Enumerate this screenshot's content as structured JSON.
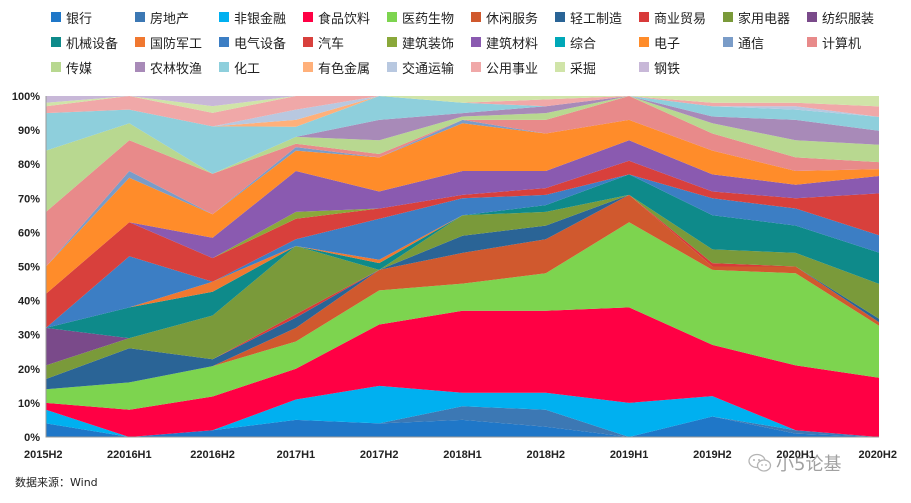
{
  "chart_data": {
    "type": "area",
    "stacked_percent": true,
    "ylim": [
      0,
      100
    ],
    "y_ticks": [
      "0%",
      "10%",
      "20%",
      "30%",
      "40%",
      "50%",
      "60%",
      "70%",
      "80%",
      "90%",
      "100%"
    ],
    "x": [
      "2015H2",
      "22016H1",
      "22016H2",
      "2017H1",
      "2017H2",
      "2018H1",
      "2018H2",
      "2019H1",
      "2019H2",
      "2020H1",
      "2020H2"
    ],
    "series": [
      {
        "name": "银行",
        "color": "#1f77c8",
        "values": [
          4,
          0,
          2,
          5,
          4,
          5,
          3,
          0,
          6,
          1,
          0
        ]
      },
      {
        "name": "房地产",
        "color": "#3c78b4",
        "values": [
          0,
          0,
          0,
          0,
          0,
          4,
          5,
          0,
          0,
          1,
          0
        ]
      },
      {
        "name": "非银金融",
        "color": "#00b0f0",
        "values": [
          4,
          0,
          0,
          6,
          11,
          4,
          5,
          10,
          6,
          0,
          0
        ]
      },
      {
        "name": "食品饮料",
        "color": "#ff0044",
        "values": [
          2,
          8,
          10,
          9,
          18,
          24,
          24,
          28,
          15,
          19,
          17
        ]
      },
      {
        "name": "医药生物",
        "color": "#7dd44f",
        "values": [
          4,
          8,
          9,
          8,
          10,
          8,
          11,
          25,
          22,
          27,
          15
        ]
      },
      {
        "name": "休闲服务",
        "color": "#d0592e",
        "values": [
          0,
          0,
          0,
          4,
          6,
          9,
          10,
          8,
          1,
          2,
          1
        ]
      },
      {
        "name": "轻工制造",
        "color": "#2a6496",
        "values": [
          3,
          10,
          2,
          3,
          0,
          5,
          4,
          0,
          0,
          0,
          1
        ]
      },
      {
        "name": "商业贸易",
        "color": "#d83a3a",
        "values": [
          0,
          0,
          0,
          1,
          0,
          0,
          0,
          0,
          1,
          0,
          0
        ]
      },
      {
        "name": "家用电器",
        "color": "#7a9a3a",
        "values": [
          4,
          3,
          13,
          20,
          0,
          6,
          4,
          0,
          4,
          4,
          10
        ]
      },
      {
        "name": "纺织服装",
        "color": "#7a4a8a",
        "values": [
          11,
          0,
          0,
          0,
          0,
          0,
          0,
          0,
          0,
          0,
          0
        ]
      },
      {
        "name": "机械设备",
        "color": "#0e8a8a",
        "values": [
          0,
          9,
          7,
          0,
          2,
          0,
          2,
          6,
          10,
          8,
          9
        ]
      },
      {
        "name": "国防军工",
        "color": "#f07830",
        "values": [
          0,
          0,
          3,
          0,
          1,
          0,
          0,
          0,
          0,
          0,
          0
        ]
      },
      {
        "name": "电气设备",
        "color": "#3c7ec4",
        "values": [
          0,
          15,
          0,
          2,
          12,
          5,
          3,
          0,
          5,
          5,
          5
        ]
      },
      {
        "name": "汽车",
        "color": "#d8403c",
        "values": [
          10,
          10,
          7,
          6,
          3,
          1,
          2,
          4,
          2,
          3,
          12
        ]
      },
      {
        "name": "建筑装饰",
        "color": "#8aa83a",
        "values": [
          0,
          0,
          0,
          2,
          0,
          0,
          0,
          0,
          0,
          0,
          0
        ]
      },
      {
        "name": "建筑材料",
        "color": "#8a5ab0",
        "values": [
          0,
          0,
          6,
          12,
          5,
          7,
          5,
          6,
          5,
          4,
          5
        ]
      },
      {
        "name": "综合",
        "color": "#00a8b8",
        "values": [
          0,
          0,
          0,
          0,
          0,
          0,
          0,
          0,
          0,
          0,
          0
        ]
      },
      {
        "name": "电子",
        "color": "#ff8c2a",
        "values": [
          8,
          13,
          7,
          6,
          10,
          14,
          11,
          6,
          7,
          4,
          2
        ]
      },
      {
        "name": "通信",
        "color": "#7a9cc8",
        "values": [
          0,
          2,
          0,
          1,
          0,
          1,
          0,
          0,
          0,
          0,
          0
        ]
      },
      {
        "name": "计算机",
        "color": "#e88a8a",
        "values": [
          16,
          9,
          12,
          1,
          1,
          0,
          4,
          7,
          5,
          4,
          2
        ]
      },
      {
        "name": "传媒",
        "color": "#b8d890",
        "values": [
          18,
          5,
          0,
          2,
          4,
          1,
          2,
          0,
          3,
          5,
          5
        ]
      },
      {
        "name": "农林牧渔",
        "color": "#a88ab8",
        "values": [
          0,
          0,
          0,
          0,
          6,
          1,
          2,
          0,
          2,
          6,
          4
        ]
      },
      {
        "name": "化工",
        "color": "#8ecfdc",
        "values": [
          11,
          4,
          14,
          3,
          7,
          3,
          0,
          0,
          3,
          3,
          4
        ]
      },
      {
        "name": "有色金属",
        "color": "#ffb07a",
        "values": [
          0,
          0,
          0,
          2,
          0,
          0,
          0,
          0,
          0,
          0,
          0
        ]
      },
      {
        "name": "交通运输",
        "color": "#b8c8e0",
        "values": [
          0,
          0,
          0,
          3,
          0,
          0,
          0,
          0,
          0,
          1,
          0
        ]
      },
      {
        "name": "公用事业",
        "color": "#f0a8a8",
        "values": [
          2,
          4,
          4,
          4,
          0,
          0,
          2,
          0,
          1,
          1,
          3
        ]
      },
      {
        "name": "采掘",
        "color": "#d0e4a8",
        "values": [
          1,
          0,
          2,
          0,
          0,
          2,
          1,
          0,
          2,
          2,
          3
        ]
      },
      {
        "name": "钢铁",
        "color": "#c8b8d8",
        "values": [
          2,
          0,
          3,
          0,
          0,
          0,
          0,
          0,
          0,
          0,
          0
        ]
      }
    ]
  },
  "source_note": "数据来源：Wind",
  "watermark": "小5论基"
}
